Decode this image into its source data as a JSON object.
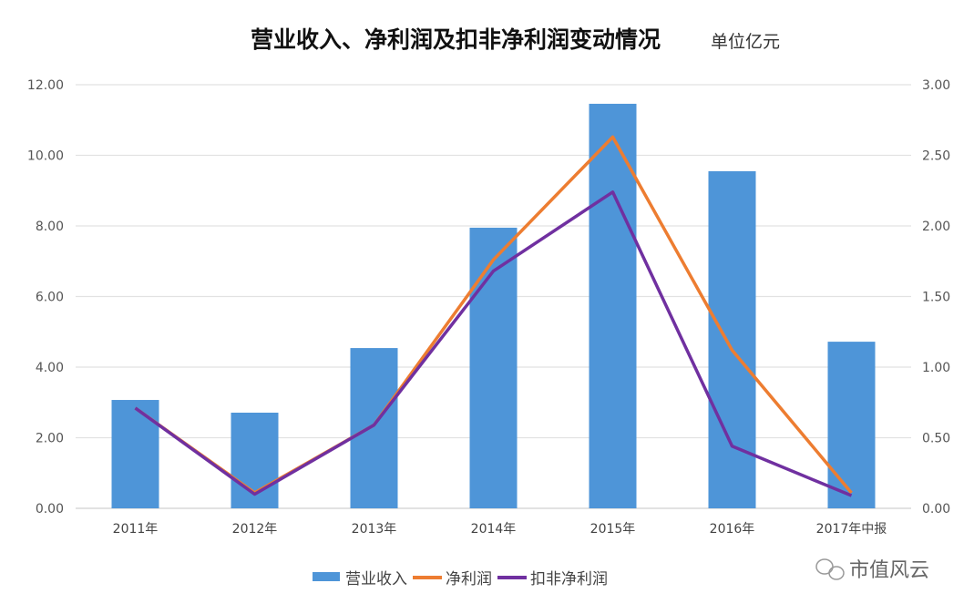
{
  "chart_data": {
    "type": "bar+line",
    "title": "营业收入、净利润及扣非净利润变动情况",
    "subtitle": "单位亿元",
    "categories": [
      "2011年",
      "2012年",
      "2013年",
      "2014年",
      "2015年",
      "2016年",
      "2017年中报"
    ],
    "y_left": {
      "range": [
        0,
        12
      ],
      "ticks": [
        "0.00",
        "2.00",
        "4.00",
        "6.00",
        "8.00",
        "10.00",
        "12.00"
      ]
    },
    "y_right": {
      "range": [
        0,
        3
      ],
      "ticks": [
        "0.00",
        "0.50",
        "1.00",
        "1.50",
        "2.00",
        "2.50",
        "3.00"
      ]
    },
    "grid": true,
    "legend_position": "bottom",
    "series": [
      {
        "name": "营业收入",
        "type": "bar",
        "axis": "left",
        "color": "#4e95d8",
        "values": [
          3.07,
          2.71,
          4.54,
          7.95,
          11.46,
          9.55,
          4.72
        ]
      },
      {
        "name": "净利润",
        "type": "line",
        "axis": "right",
        "color": "#ed7d31",
        "values": [
          0.71,
          0.11,
          0.59,
          1.76,
          2.63,
          1.12,
          0.11
        ]
      },
      {
        "name": "扣非净利润",
        "type": "line",
        "axis": "right",
        "color": "#7030a0",
        "values": [
          0.71,
          0.1,
          0.59,
          1.68,
          2.24,
          0.44,
          0.09
        ]
      }
    ]
  },
  "watermark": "市值风云"
}
